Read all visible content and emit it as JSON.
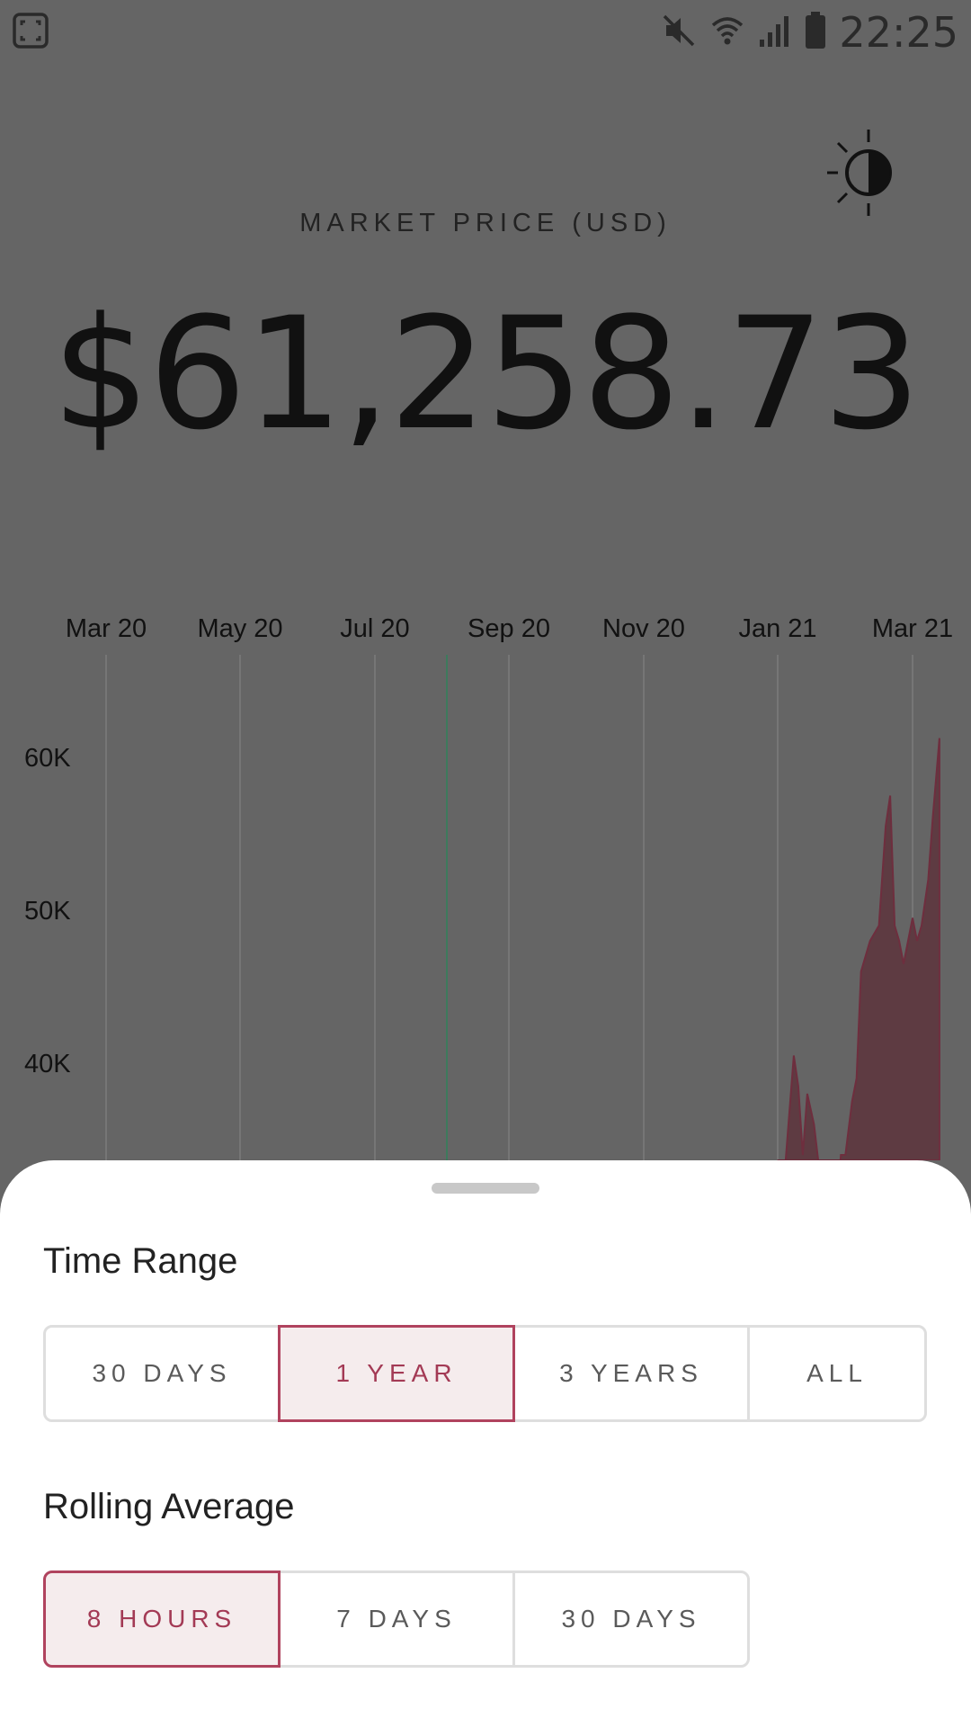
{
  "status_bar": {
    "time": "22:25",
    "icons": [
      "screenshot-icon",
      "mute-icon",
      "wifi-icon",
      "signal-icon",
      "battery-icon"
    ]
  },
  "header": {
    "market_label": "MARKET PRICE (USD)",
    "price": "$61,258.73",
    "theme_toggle_icon": "brightness-icon"
  },
  "chart_data": {
    "type": "area",
    "x_tick_labels": [
      "Mar 20",
      "May 20",
      "Jul 20",
      "Sep 20",
      "Nov 20",
      "Jan 21",
      "Mar 21"
    ],
    "y_tick_labels": [
      "60K",
      "50K",
      "40K"
    ],
    "y_ticks": [
      60000,
      50000,
      40000
    ],
    "grid": "vertical",
    "colors": {
      "fill": "#5e3b42",
      "line": "#6e2e3e",
      "grid": "#7c7c7c",
      "cursor": "#3d7a5c"
    },
    "series": [
      {
        "x": [
          "2021-01-01",
          "2021-01-04",
          "2021-01-08",
          "2021-01-10",
          "2021-01-12",
          "2021-01-14",
          "2021-01-17",
          "2021-01-21",
          "2021-01-23",
          "2021-01-27",
          "2021-01-29",
          "2021-02-01",
          "2021-02-04",
          "2021-02-06",
          "2021-02-08",
          "2021-02-09",
          "2021-02-12",
          "2021-02-16",
          "2021-02-19",
          "2021-02-21",
          "2021-02-23",
          "2021-02-25",
          "2021-02-27",
          "2021-03-01",
          "2021-03-03",
          "2021-03-05",
          "2021-03-08",
          "2021-03-10",
          "2021-03-13"
        ],
        "values": [
          29000,
          33000,
          40500,
          38500,
          34000,
          38000,
          36000,
          31000,
          33000,
          30500,
          34000,
          34000,
          37500,
          39000,
          46000,
          46500,
          48000,
          49000,
          55500,
          57500,
          49000,
          48000,
          46500,
          49500,
          48000,
          49000,
          52000,
          56000,
          61258.73
        ]
      }
    ]
  },
  "sheet": {
    "time_range": {
      "title": "Time Range",
      "options": [
        "30 DAYS",
        "1 YEAR",
        "3 YEARS",
        "ALL"
      ],
      "selected": "1 YEAR"
    },
    "rolling_average": {
      "title": "Rolling Average",
      "options": [
        "8 HOURS",
        "7 DAYS",
        "30 DAYS"
      ],
      "selected": "8 HOURS"
    }
  }
}
